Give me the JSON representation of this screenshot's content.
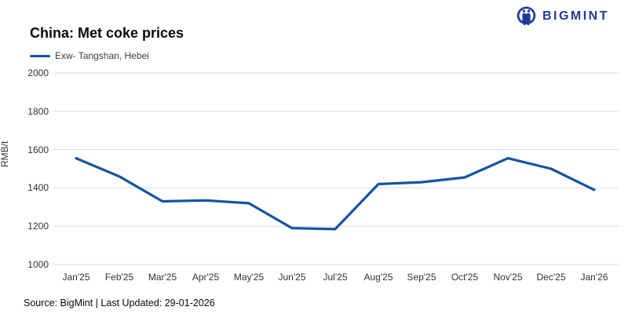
{
  "header": {
    "title": "China: Met coke prices",
    "brand": "BIGMINT"
  },
  "legend": {
    "label": "Exw- Tangshan, Hebei"
  },
  "footer": {
    "text": "Source: BigMint | Last Updated: 29-01-2026"
  },
  "colors": {
    "line": "#1254a8",
    "brand": "#1e3c9e",
    "grid": "#d9d9d9",
    "text": "#333333"
  },
  "icons": {
    "brand_logo": "bigmint-logo-icon"
  },
  "chart_data": {
    "type": "line",
    "title": "China: Met coke prices",
    "xlabel": "",
    "ylabel": "RMB/t",
    "categories": [
      "Jan'25",
      "Feb'25",
      "Mar'25",
      "Apr'25",
      "May'25",
      "Jun'25",
      "Jul'25",
      "Aug'25",
      "Sep'25",
      "Oct'25",
      "Nov'25",
      "Dec'25",
      "Jan'26"
    ],
    "series": [
      {
        "name": "Exw- Tangshan, Hebei",
        "values": [
          1555,
          1460,
          1330,
          1335,
          1320,
          1190,
          1185,
          1420,
          1430,
          1455,
          1555,
          1500,
          1390
        ]
      }
    ],
    "ylim": [
      1000,
      2000
    ],
    "yticks": [
      1000,
      1200,
      1400,
      1600,
      1800,
      2000
    ],
    "grid": true,
    "legend_position": "top-left"
  }
}
